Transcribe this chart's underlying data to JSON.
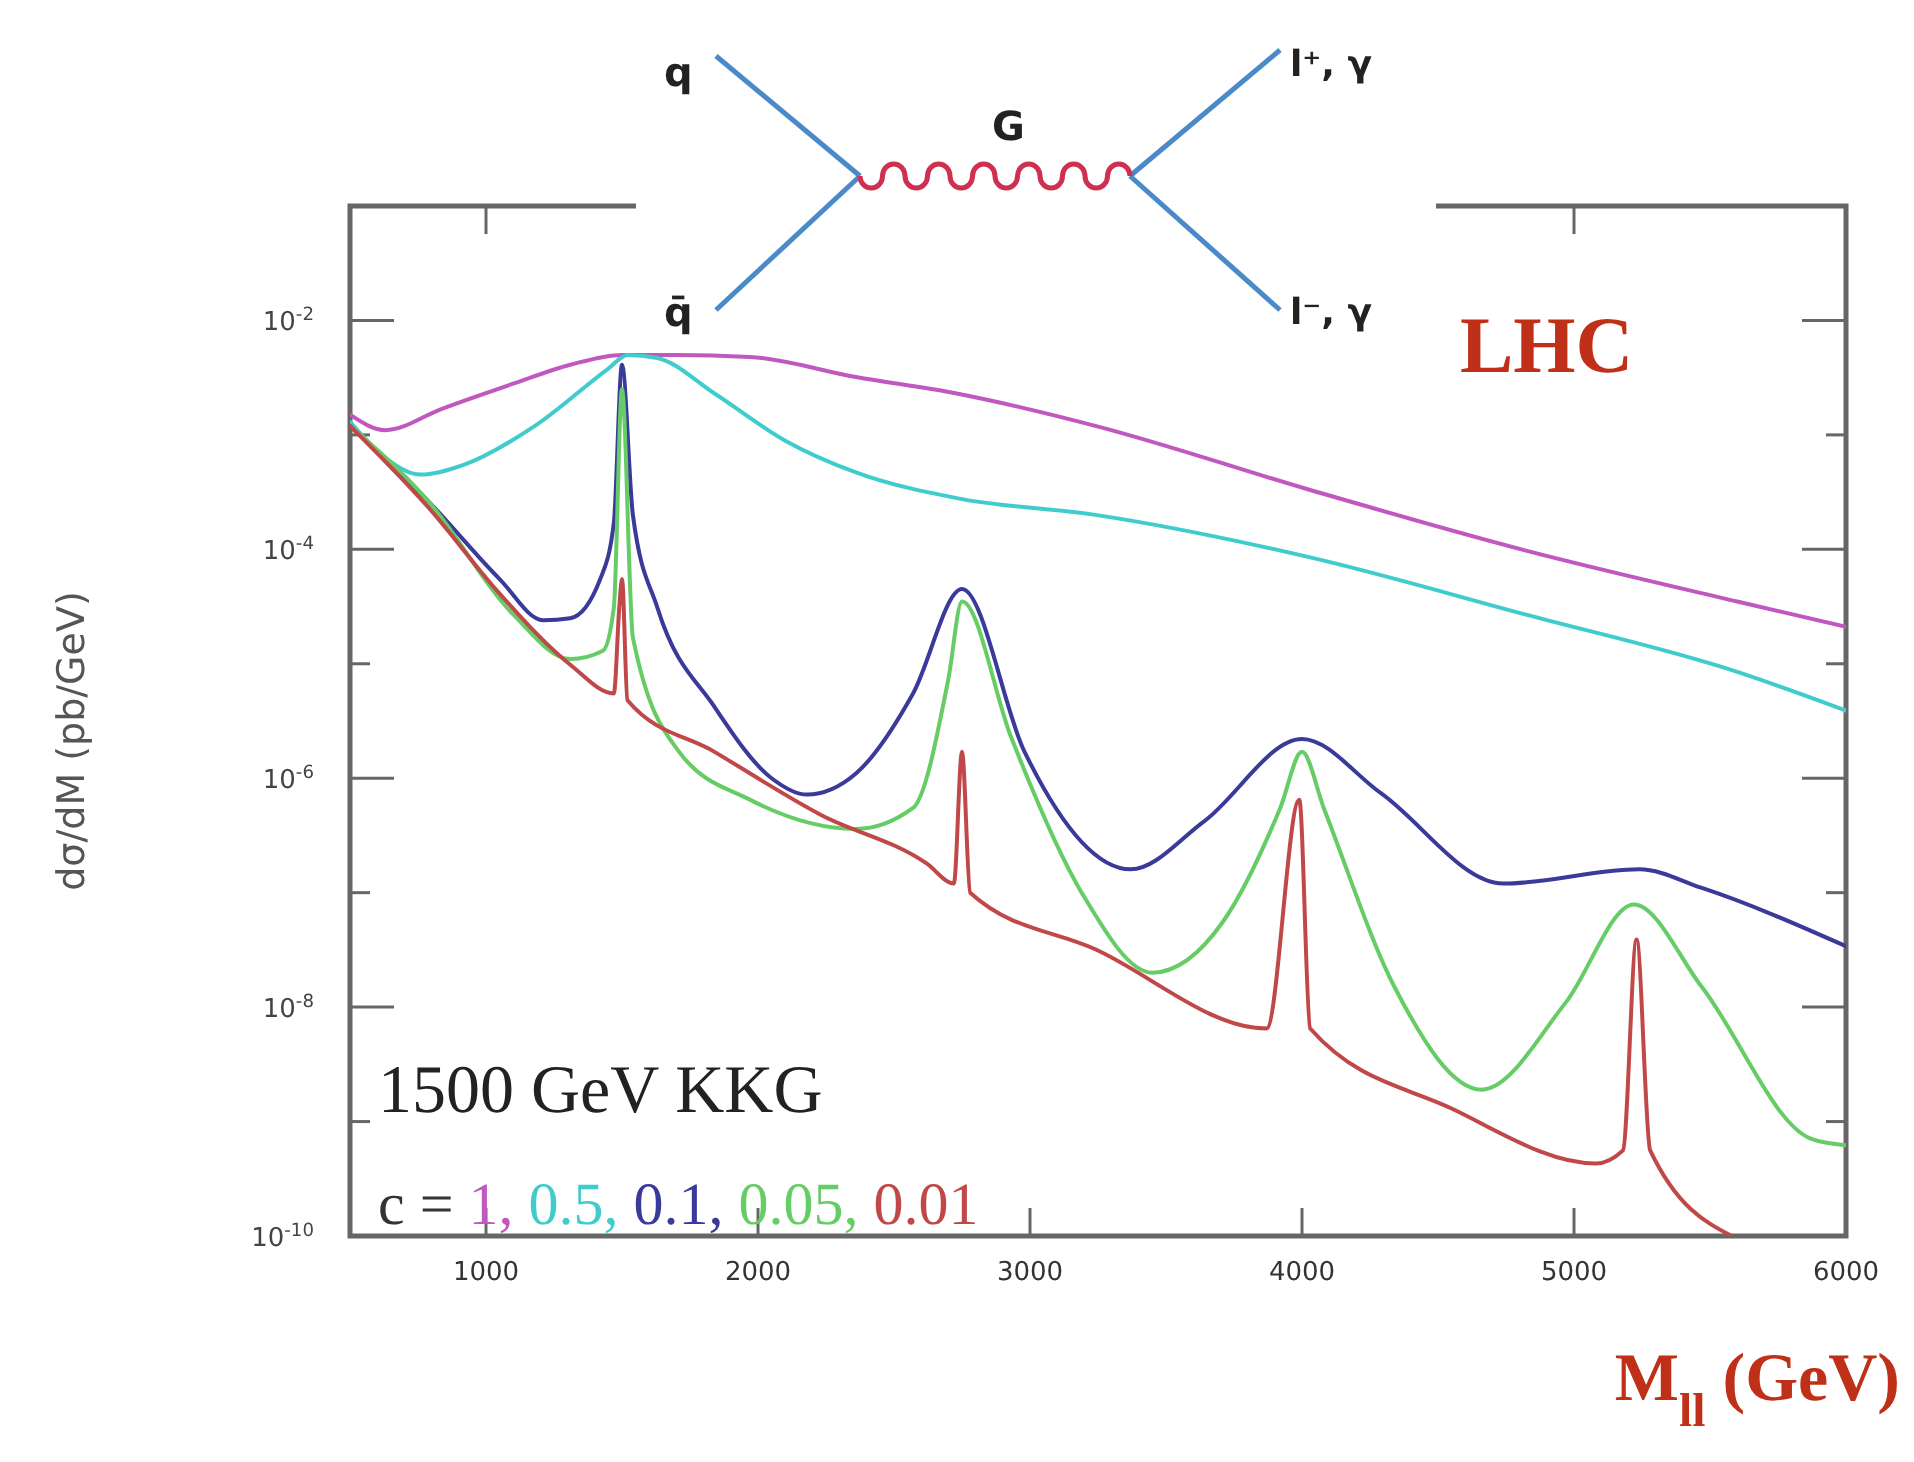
{
  "chart_data": {
    "type": "line",
    "xlabel": "M$_{ll}$ (GeV)",
    "ylabel": "dσ/dM (pb/GeV)",
    "legend_title": "c =",
    "legend": "bottom left",
    "log": "y",
    "grid": false,
    "line_style": "solid",
    "xlim": [
      500,
      6000
    ],
    "xticks": [
      1000,
      2000,
      3000,
      4000,
      5000,
      6000
    ],
    "ylim": [
      1e-10,
      0.1
    ],
    "yticks": [
      {
        "value": 1e-10,
        "label": "10$^{-10}$"
      },
      {
        "value": 1e-09,
        "label": null
      },
      {
        "value": 1e-08,
        "label": "10$^{-8}$"
      },
      {
        "value": 1e-07,
        "label": null
      },
      {
        "value": 1e-06,
        "label": "10$^{-6}$"
      },
      {
        "value": 1e-05,
        "label": null
      },
      {
        "value": 0.0001,
        "label": "10$^{-4}$"
      },
      {
        "value": 0.001,
        "label": null
      },
      {
        "value": 0.01,
        "label": "10$^{-2}$"
      },
      {
        "value": 0.1,
        "label": null
      }
    ],
    "annotations": [
      "1500 GeV KKG",
      "LHC",
      "q",
      "q̄",
      "G",
      "l⁺, γ",
      "l⁻, γ",
      ",",
      ",",
      ",",
      ","
    ],
    "series": [
      {
        "name": "1",
        "color": "#c058c0",
        "x": [
          500,
          630,
          840,
          1100,
          1310,
          1500,
          1700,
          1970,
          2360,
          2730,
          3240,
          4030,
          4820,
          5600,
          6000
        ],
        "values": [
          0.0015,
          0.0011,
          0.0017,
          0.0028,
          0.0041,
          0.005,
          0.005,
          0.0048,
          0.0032,
          0.0023,
          0.0012,
          0.00033,
          9.8e-05,
          3.5e-05,
          2.1e-05
        ]
      },
      {
        "name": "0.5",
        "color": "#40cccc",
        "x": [
          500,
          630,
          760,
          920,
          1180,
          1450,
          1520,
          1630,
          1840,
          2100,
          2360,
          2730,
          3240,
          4030,
          4820,
          5600,
          6000
        ],
        "values": [
          0.0013,
          0.00063,
          0.00045,
          0.00055,
          0.0012,
          0.0038,
          0.005,
          0.0047,
          0.0023,
          0.00089,
          0.00047,
          0.00028,
          0.0002,
          8.5e-05,
          2.7e-05,
          8.5e-06,
          3.9e-06
        ]
      },
      {
        "name": "0.1",
        "color": "#3a3a9a",
        "x": [
          500,
          790,
          1050,
          1210,
          1310,
          1420,
          1470,
          1500,
          1540,
          1630,
          1840,
          2050,
          2180,
          2360,
          2570,
          2750,
          2980,
          3370,
          3640,
          4000,
          4290,
          4740,
          5240,
          5470,
          6000
        ],
        "values": [
          0.0012,
          0.00026,
          5.5e-05,
          2.4e-05,
          2.5e-05,
          5.5e-05,
          0.00017,
          0.0041,
          0.0002,
          3.1e-05,
          4.2e-06,
          1e-06,
          7.2e-07,
          1.1e-06,
          5.5e-06,
          4.5e-05,
          1.7e-06,
          1.6e-07,
          4.2e-07,
          2.2e-06,
          7.4e-07,
          1.2e-07,
          1.6e-07,
          1.1e-07,
          3.4e-08
        ]
      },
      {
        "name": "0.05",
        "color": "#66cc66",
        "x": [
          500,
          790,
          1100,
          1310,
          1430,
          1470,
          1500,
          1540,
          1710,
          1970,
          2360,
          2570,
          2700,
          2750,
          2930,
          3190,
          3450,
          3710,
          3920,
          4000,
          4080,
          4340,
          4660,
          4970,
          5220,
          5470,
          5870,
          6000
        ],
        "values": [
          0.0012,
          0.00026,
          2.7e-05,
          1.1e-05,
          1.3e-05,
          3.1e-05,
          0.0025,
          1.7e-05,
          1.7e-06,
          6.5e-07,
          3.6e-07,
          5.5e-07,
          7.4e-06,
          3.5e-05,
          2.3e-06,
          1e-07,
          2e-08,
          5.6e-08,
          5.5e-07,
          1.7e-06,
          5.5e-07,
          1.5e-08,
          1.9e-09,
          1.1e-08,
          7.9e-08,
          1.5e-08,
          7.1e-10,
          6.2e-10
        ]
      },
      {
        "name": "0.01",
        "color": "#c04848",
        "x": [
          500,
          790,
          1050,
          1310,
          1470,
          1490,
          1500,
          1520,
          1840,
          2230,
          2620,
          2720,
          2750,
          2780,
          3240,
          3870,
          3990,
          4030,
          4550,
          5080,
          5180,
          5230,
          5280,
          5580
        ],
        "values": [
          0.0012,
          0.00023,
          4.1e-05,
          9.8e-06,
          5.5e-06,
          3.1e-05,
          5.5e-05,
          4.8e-06,
          1.7e-06,
          4.8e-07,
          1.8e-07,
          1.2e-07,
          1.7e-06,
          1e-07,
          3.2e-08,
          6.5e-09,
          6.5e-07,
          6.5e-09,
          1.3e-09,
          4.3e-10,
          5.6e-10,
          3.9e-08,
          5.6e-10,
          1e-10
        ]
      }
    ]
  }
}
